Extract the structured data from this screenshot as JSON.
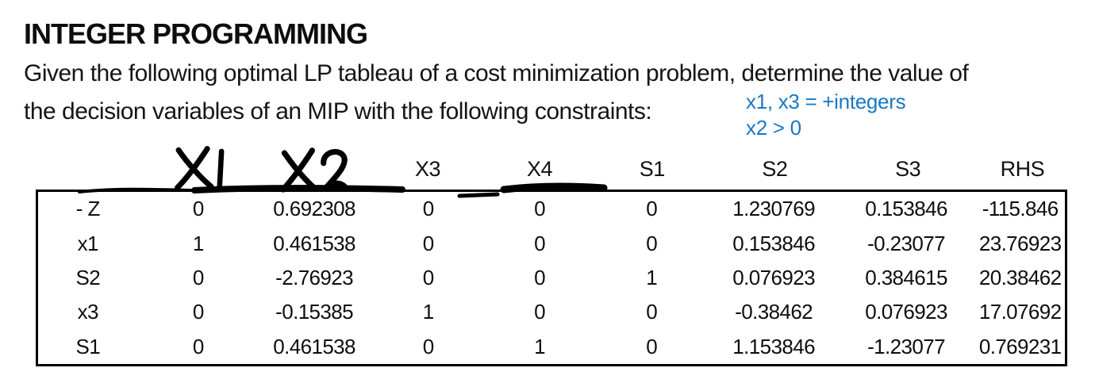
{
  "title": "INTEGER PROGRAMMING",
  "intro": {
    "line1": "Given the following optimal LP tableau of a cost minimization problem, determine the value of",
    "line2": "the decision variables of an MIP with the following constraints:"
  },
  "constraints": {
    "line1": "x1, x3 = +integers",
    "line2": "x2 > 0",
    "color": "#1878c4"
  },
  "tableau": {
    "columns": [
      "",
      "X1",
      "X2",
      "X3",
      "X4",
      "S1",
      "S2",
      "S3",
      "RHS"
    ],
    "handwritten_columns": [
      "X1",
      "X2"
    ],
    "rows": [
      {
        "label": "- Z",
        "values": [
          "0",
          "0.692308",
          "0",
          "0",
          "0",
          "1.230769",
          "0.153846",
          "-115.846"
        ]
      },
      {
        "label": "x1",
        "values": [
          "1",
          "0.461538",
          "0",
          "0",
          "0",
          "0.153846",
          "-0.23077",
          "23.76923"
        ]
      },
      {
        "label": "S2",
        "values": [
          "0",
          "-2.76923",
          "0",
          "0",
          "1",
          "0.076923",
          "0.384615",
          "20.38462"
        ]
      },
      {
        "label": "x3",
        "values": [
          "0",
          "-0.15385",
          "1",
          "0",
          "0",
          "-0.38462",
          "0.076923",
          "17.07692"
        ]
      },
      {
        "label": "S1",
        "values": [
          "0",
          "0.461538",
          "0",
          "1",
          "0",
          "1.153846",
          "-1.23077",
          "0.769231"
        ]
      }
    ]
  }
}
